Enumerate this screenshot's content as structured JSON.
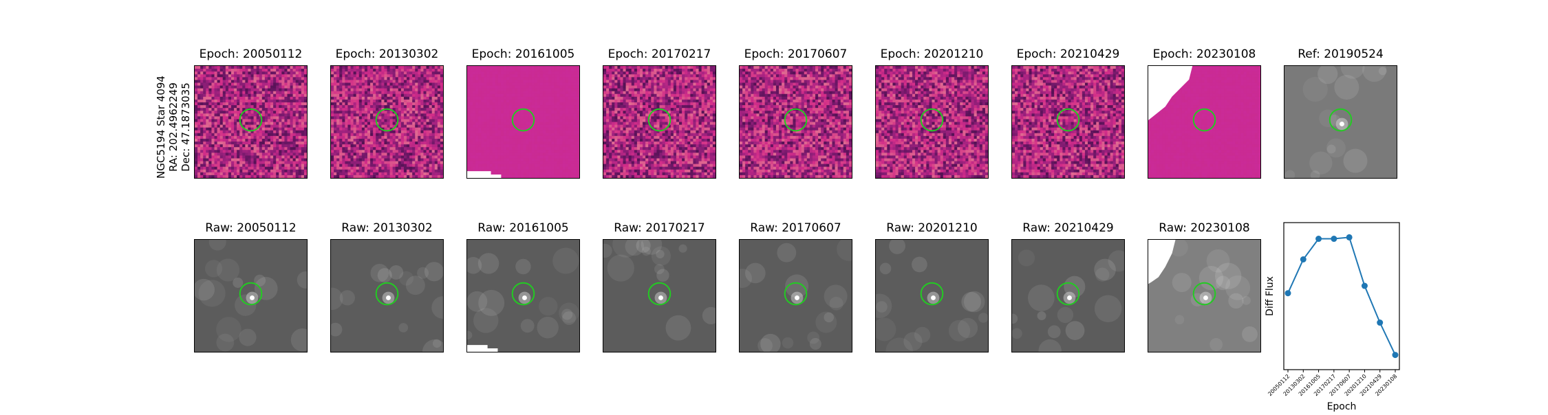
{
  "star_label": [
    "NGC5194 Star 4094",
    "RA: 202.4962249",
    "Dec: 47.1873035"
  ],
  "diff_row": [
    {
      "title": "Epoch: 20050112"
    },
    {
      "title": "Epoch: 20130302"
    },
    {
      "title": "Epoch: 20161005"
    },
    {
      "title": "Epoch: 20170217"
    },
    {
      "title": "Epoch: 20170607"
    },
    {
      "title": "Epoch: 20201210"
    },
    {
      "title": "Epoch: 20210429"
    },
    {
      "title": "Epoch: 20230108"
    },
    {
      "title": "Ref: 20190524"
    }
  ],
  "raw_row": [
    {
      "title": "Raw: 20050112"
    },
    {
      "title": "Raw: 20130302"
    },
    {
      "title": "Raw: 20161005"
    },
    {
      "title": "Raw: 20170217"
    },
    {
      "title": "Raw: 20170607"
    },
    {
      "title": "Raw: 20201210"
    },
    {
      "title": "Raw: 20210429"
    },
    {
      "title": "Raw: 20230108"
    }
  ],
  "colors": {
    "marker_circle": "#22cc22",
    "line": "#1f77b4"
  },
  "chart_data": {
    "type": "line",
    "xlabel": "Epoch",
    "ylabel": "Diff Flux",
    "x": [
      "20050112",
      "20130302",
      "20161005",
      "20170217",
      "20170607",
      "20201210",
      "20210429",
      "20230108"
    ],
    "y": [
      0.56,
      0.79,
      0.93,
      0.93,
      0.94,
      0.61,
      0.36,
      0.14
    ],
    "ylim": [
      0.04,
      1.04
    ],
    "grid": false
  }
}
